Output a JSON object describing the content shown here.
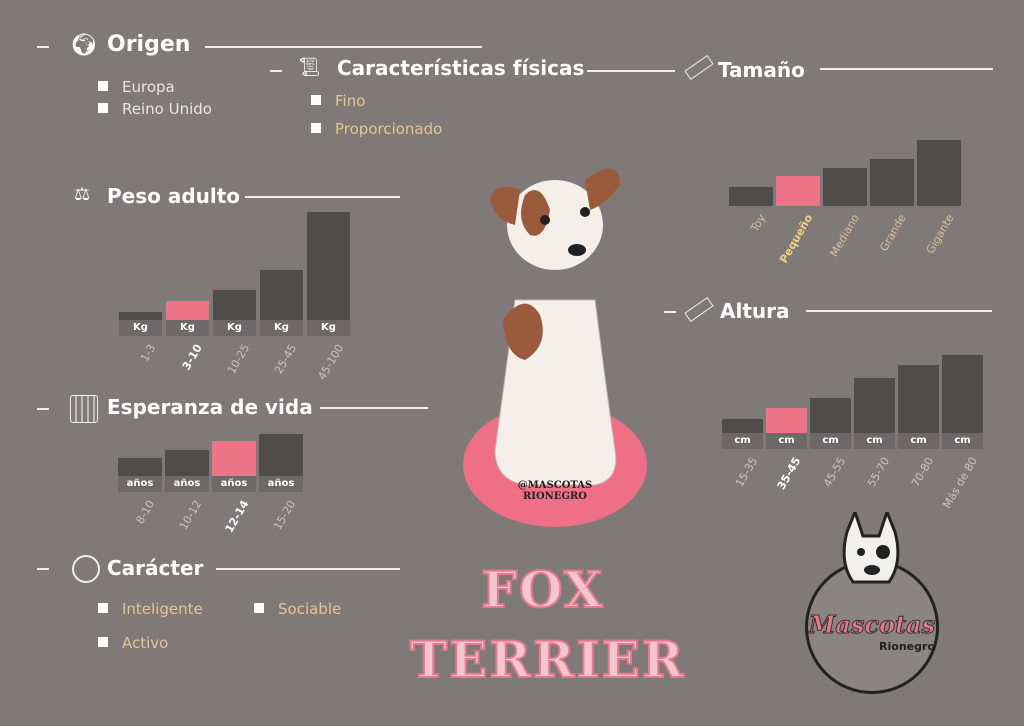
{
  "origen": {
    "title": "Origen",
    "items": [
      "Europa",
      "Reino Unido"
    ]
  },
  "caracteristicas": {
    "title": "Características físicas",
    "items": [
      "Fino",
      "Proporcionado"
    ]
  },
  "tamano": {
    "title": "Tamaño",
    "categories": [
      "Toy",
      "Pequeño",
      "Mediano",
      "Grande",
      "Gigante"
    ],
    "highlight": 1
  },
  "peso": {
    "title": "Peso adulto",
    "unit": "Kg",
    "categories": [
      "1-3",
      "3-10",
      "10-25",
      "25-45",
      "45-100"
    ],
    "highlight": 1
  },
  "esperanza": {
    "title": "Esperanza de vida",
    "unit": "años",
    "categories": [
      "8-10",
      "10-12",
      "12-14",
      "15-20"
    ],
    "highlight": 2
  },
  "altura": {
    "title": "Altura",
    "unit": "cm",
    "categories": [
      "15-35",
      "35-45",
      "45-55",
      "55-70",
      "70-80",
      "Más de 80"
    ],
    "highlight": 1
  },
  "caracter": {
    "title": "Carácter",
    "items": [
      "Inteligente",
      "Sociable",
      "Activo"
    ]
  },
  "breed": {
    "line1": "FOX",
    "line2": "TERRIER"
  },
  "watermark": "@MASCOTAS RIONEGRO",
  "logo": {
    "text": "Mascotas",
    "sub": "Rionegro"
  },
  "colors": {
    "background": "#7f7a78",
    "bar": "#4f4d4c",
    "highlight": "#ee7488",
    "accent_text": "#e8c38e"
  }
}
